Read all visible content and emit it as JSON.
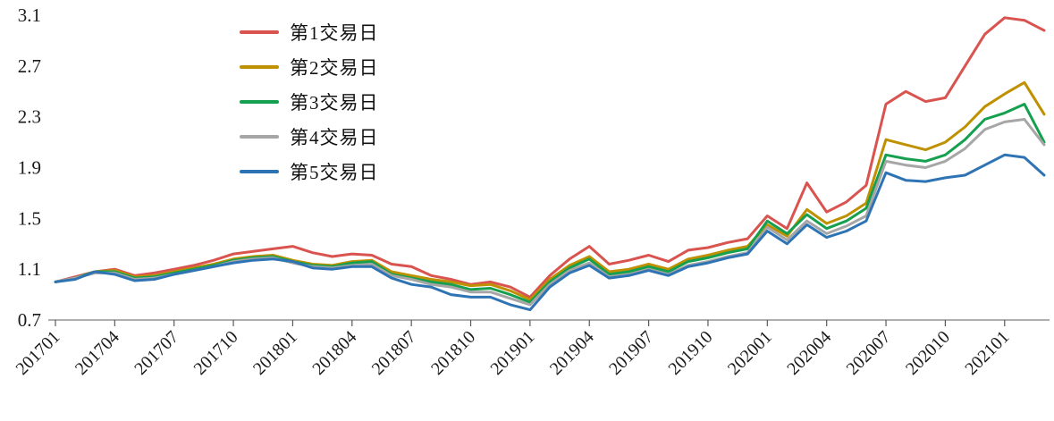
{
  "chart_data": {
    "type": "line",
    "title": "",
    "xlabel": "",
    "ylabel": "",
    "ylim": [
      0.7,
      3.1
    ],
    "y_ticks": [
      0.7,
      1.1,
      1.5,
      1.9,
      2.3,
      2.7,
      3.1
    ],
    "grid": false,
    "legend_position": "top-left-inside",
    "x": [
      "201701",
      "201702",
      "201703",
      "201704",
      "201705",
      "201706",
      "201707",
      "201708",
      "201709",
      "201710",
      "201711",
      "201712",
      "201801",
      "201802",
      "201803",
      "201804",
      "201805",
      "201806",
      "201807",
      "201808",
      "201809",
      "201810",
      "201811",
      "201812",
      "201901",
      "201902",
      "201903",
      "201904",
      "201905",
      "201906",
      "201907",
      "201908",
      "201909",
      "201910",
      "201911",
      "201912",
      "202001",
      "202002",
      "202003",
      "202004",
      "202005",
      "202006",
      "202007",
      "202008",
      "202009",
      "202010",
      "202011",
      "202012",
      "202101",
      "202102",
      "202103"
    ],
    "x_tick_labels": [
      "201701",
      "201704",
      "201707",
      "201710",
      "201801",
      "201804",
      "201807",
      "201810",
      "201901",
      "201904",
      "201907",
      "201910",
      "202001",
      "202004",
      "202007",
      "202010",
      "202101"
    ],
    "series": [
      {
        "name": "第1交易日",
        "color": "#d9534f",
        "values": [
          1.0,
          1.04,
          1.08,
          1.1,
          1.05,
          1.07,
          1.1,
          1.13,
          1.17,
          1.22,
          1.24,
          1.26,
          1.28,
          1.23,
          1.2,
          1.22,
          1.21,
          1.14,
          1.12,
          1.05,
          1.02,
          0.98,
          1.0,
          0.96,
          0.88,
          1.05,
          1.18,
          1.28,
          1.14,
          1.17,
          1.21,
          1.16,
          1.25,
          1.27,
          1.31,
          1.34,
          1.52,
          1.42,
          1.78,
          1.55,
          1.63,
          1.76,
          2.4,
          2.5,
          2.42,
          2.45,
          2.7,
          2.95,
          3.08,
          3.06,
          2.98
        ]
      },
      {
        "name": "第2交易日",
        "color": "#bf9000",
        "values": [
          1.0,
          1.03,
          1.08,
          1.09,
          1.04,
          1.05,
          1.08,
          1.11,
          1.14,
          1.18,
          1.2,
          1.21,
          1.17,
          1.14,
          1.13,
          1.16,
          1.17,
          1.08,
          1.05,
          1.02,
          1.0,
          0.97,
          0.98,
          0.93,
          0.86,
          1.02,
          1.13,
          1.2,
          1.08,
          1.1,
          1.14,
          1.1,
          1.18,
          1.21,
          1.25,
          1.28,
          1.45,
          1.36,
          1.57,
          1.46,
          1.52,
          1.62,
          2.12,
          2.08,
          2.04,
          2.1,
          2.22,
          2.38,
          2.48,
          2.57,
          2.32
        ]
      },
      {
        "name": "第3交易日",
        "color": "#14a04e",
        "values": [
          1.0,
          1.03,
          1.08,
          1.08,
          1.03,
          1.04,
          1.07,
          1.1,
          1.13,
          1.17,
          1.19,
          1.2,
          1.16,
          1.13,
          1.12,
          1.15,
          1.16,
          1.06,
          1.03,
          1.0,
          0.98,
          0.94,
          0.95,
          0.9,
          0.84,
          1.0,
          1.11,
          1.18,
          1.06,
          1.08,
          1.12,
          1.08,
          1.16,
          1.19,
          1.23,
          1.26,
          1.48,
          1.38,
          1.53,
          1.42,
          1.48,
          1.58,
          2.0,
          1.97,
          1.95,
          2.0,
          2.12,
          2.28,
          2.33,
          2.4,
          2.1
        ]
      },
      {
        "name": "第4交易日",
        "color": "#a6a6a6",
        "values": [
          1.0,
          1.03,
          1.07,
          1.07,
          1.02,
          1.03,
          1.06,
          1.09,
          1.12,
          1.16,
          1.18,
          1.19,
          1.15,
          1.12,
          1.11,
          1.13,
          1.14,
          1.05,
          1.02,
          0.98,
          0.96,
          0.92,
          0.92,
          0.87,
          0.82,
          0.98,
          1.09,
          1.15,
          1.04,
          1.06,
          1.1,
          1.06,
          1.13,
          1.16,
          1.2,
          1.23,
          1.43,
          1.33,
          1.48,
          1.38,
          1.44,
          1.52,
          1.95,
          1.92,
          1.9,
          1.95,
          2.05,
          2.2,
          2.26,
          2.28,
          2.08
        ]
      },
      {
        "name": "第5交易日",
        "color": "#2e74b5",
        "values": [
          1.0,
          1.02,
          1.08,
          1.06,
          1.01,
          1.02,
          1.06,
          1.09,
          1.12,
          1.15,
          1.17,
          1.18,
          1.16,
          1.11,
          1.1,
          1.12,
          1.12,
          1.03,
          0.98,
          0.96,
          0.9,
          0.88,
          0.88,
          0.82,
          0.78,
          0.96,
          1.07,
          1.13,
          1.03,
          1.05,
          1.09,
          1.05,
          1.12,
          1.15,
          1.19,
          1.22,
          1.4,
          1.3,
          1.45,
          1.35,
          1.4,
          1.48,
          1.86,
          1.8,
          1.79,
          1.82,
          1.84,
          1.92,
          2.0,
          1.98,
          1.84
        ]
      }
    ],
    "style": {
      "axis_color": "#7f7f7f",
      "tick_color": "#595959",
      "label_color": "#1a1a1a"
    }
  }
}
